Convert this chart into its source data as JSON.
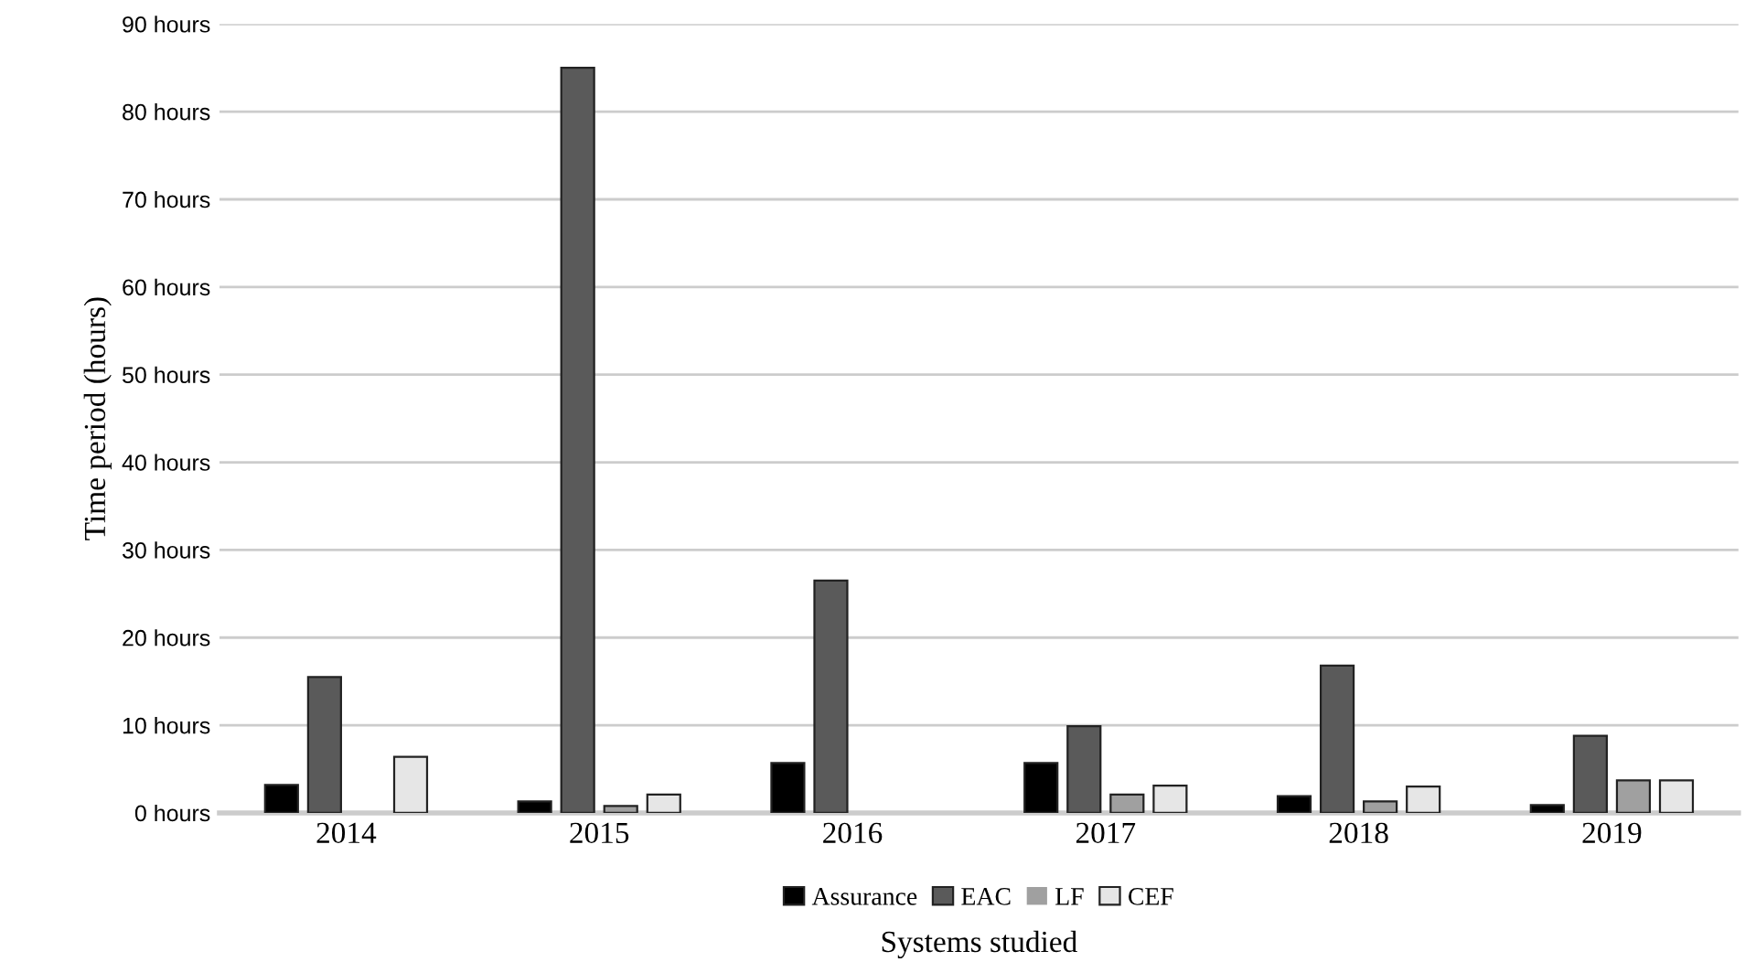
{
  "chart_data": {
    "type": "bar",
    "xlabel": "Systems studied",
    "ylabel": "Time period (hours)",
    "categories": [
      "2014",
      "2015",
      "2016",
      "2017",
      "2018",
      "2019"
    ],
    "series": [
      {
        "name": "Assurance",
        "color": "#000000",
        "values": [
          3.2,
          1.3,
          5.7,
          5.7,
          1.9,
          0.9
        ]
      },
      {
        "name": "EAC",
        "color": "#5a5a5a",
        "values": [
          15.5,
          85,
          26.5,
          9.9,
          16.8,
          8.8
        ]
      },
      {
        "name": "LF",
        "color": "#a0a0a0",
        "values": [
          0,
          0.8,
          0,
          2.1,
          1.3,
          3.7
        ]
      },
      {
        "name": "CEF",
        "color": "#e6e6e6",
        "values": [
          6.4,
          2.1,
          0,
          3.1,
          3.0,
          3.7
        ]
      }
    ],
    "ylim": [
      0,
      90
    ],
    "yticks": [
      {
        "value": 0,
        "label": "0 hours"
      },
      {
        "value": 10,
        "label": "10 hours"
      },
      {
        "value": 20,
        "label": "20 hours"
      },
      {
        "value": 30,
        "label": "30 hours"
      },
      {
        "value": 40,
        "label": "40 hours"
      },
      {
        "value": 50,
        "label": "50 hours"
      },
      {
        "value": 60,
        "label": "60 hours"
      },
      {
        "value": 70,
        "label": "70 hours"
      },
      {
        "value": 80,
        "label": "80 hours"
      },
      {
        "value": 90,
        "label": "90 hours"
      }
    ],
    "grid": "y",
    "legend": "bottom"
  }
}
